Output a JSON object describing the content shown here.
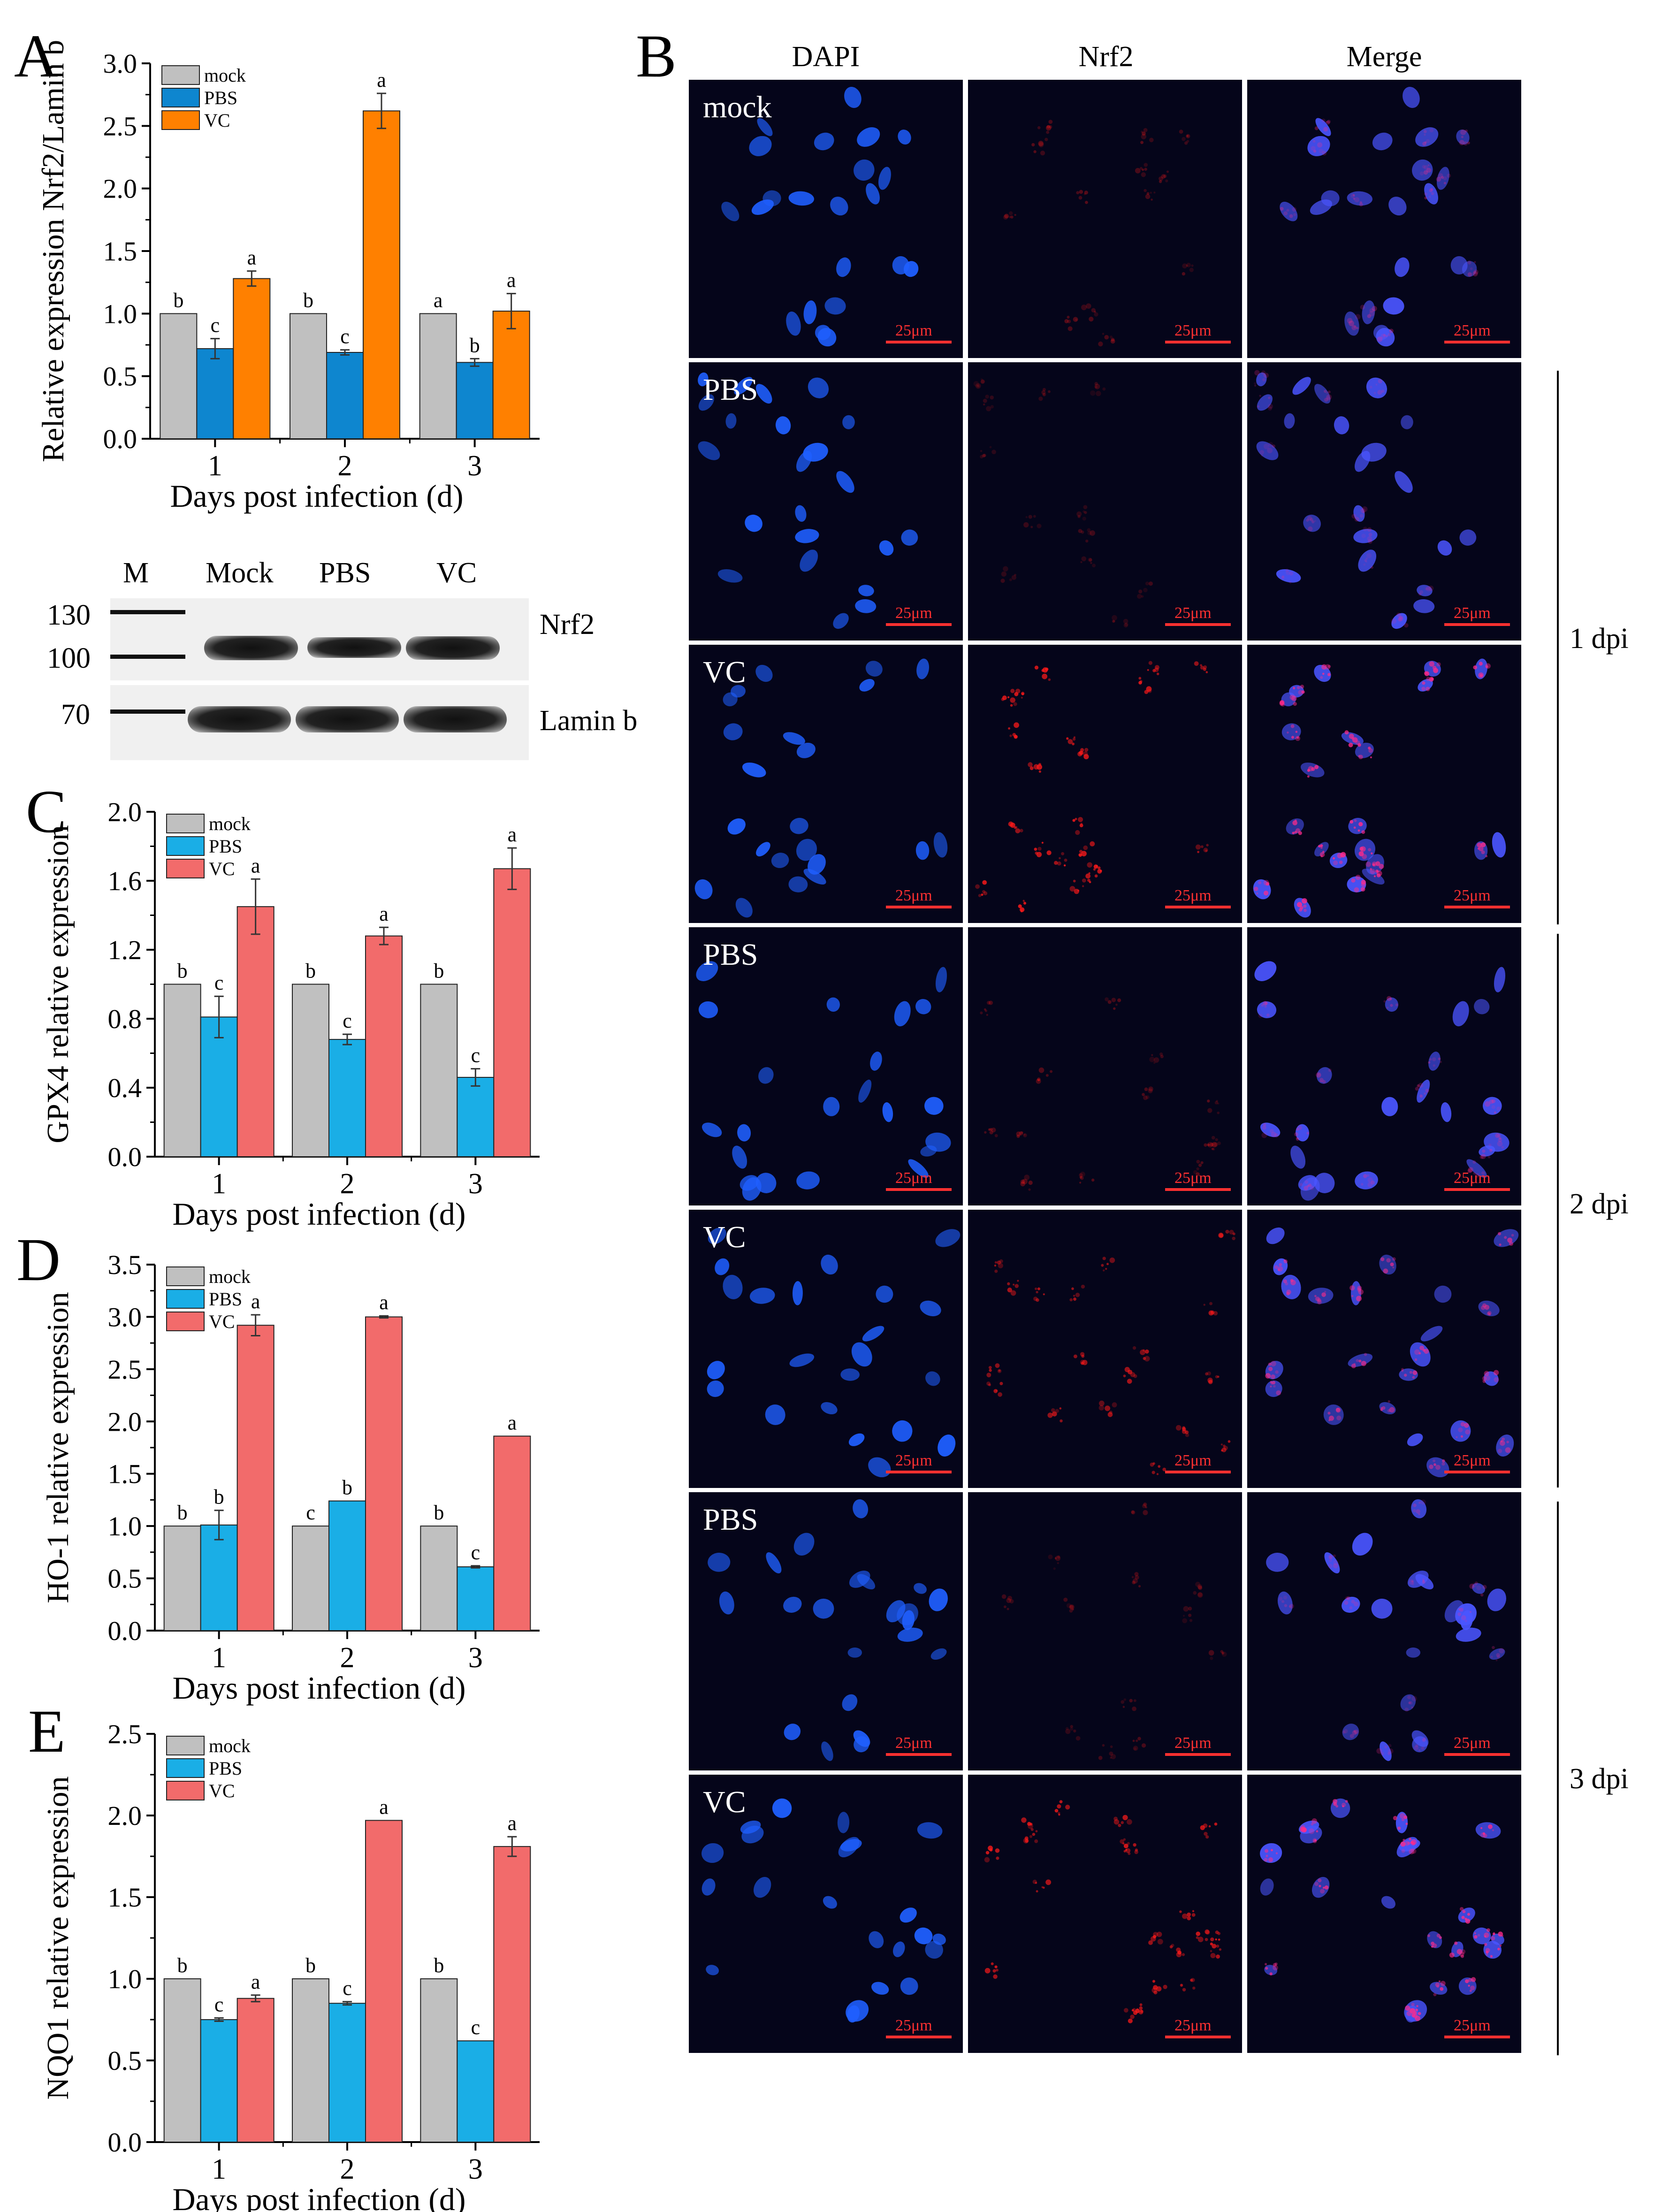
{
  "panels": {
    "A": "A",
    "B": "B",
    "C": "C",
    "D": "D",
    "E": "E"
  },
  "chart_data": [
    {
      "id": "chart-A",
      "type": "bar",
      "ylabel": "Relative expression Nrf2/Lamin b",
      "xlabel": "Days post infection (d)",
      "categories": [
        "1",
        "2",
        "3"
      ],
      "ylim": [
        0,
        3.0
      ],
      "yticks": [
        "0.0",
        "0.5",
        "1.0",
        "1.5",
        "2.0",
        "2.5",
        "3.0"
      ],
      "series": [
        {
          "name": "mock",
          "color": "#c0c0c0",
          "values": [
            1.0,
            1.0,
            1.0
          ],
          "errors": [
            0,
            0,
            0
          ],
          "letters": [
            "b",
            "b",
            "a"
          ]
        },
        {
          "name": "PBS",
          "color": "#0e86cf",
          "values": [
            0.72,
            0.69,
            0.61
          ],
          "errors": [
            0.08,
            0.02,
            0.03
          ],
          "letters": [
            "c",
            "c",
            "b"
          ]
        },
        {
          "name": "VC",
          "color": "#ff8000",
          "values": [
            1.28,
            2.62,
            1.02
          ],
          "errors": [
            0.06,
            0.14,
            0.14
          ],
          "letters": [
            "a",
            "a",
            "a"
          ]
        }
      ],
      "legend": "top-left",
      "grid": false
    },
    {
      "id": "chart-C",
      "type": "bar",
      "ylabel": "GPX4 relative expression",
      "xlabel": "Days post infection (d)",
      "categories": [
        "1",
        "2",
        "3"
      ],
      "ylim": [
        0,
        2.0
      ],
      "yticks": [
        "0.0",
        "0.4",
        "0.8",
        "1.2",
        "1.6",
        "2.0"
      ],
      "series": [
        {
          "name": "mock",
          "color": "#c0c0c0",
          "values": [
            1.0,
            1.0,
            1.0
          ],
          "errors": [
            0,
            0,
            0
          ],
          "letters": [
            "b",
            "b",
            "b"
          ]
        },
        {
          "name": "PBS",
          "color": "#1aaee6",
          "values": [
            0.81,
            0.68,
            0.46
          ],
          "errors": [
            0.12,
            0.03,
            0.05
          ],
          "letters": [
            "c",
            "c",
            "c"
          ]
        },
        {
          "name": "VC",
          "color": "#f26b6b",
          "values": [
            1.45,
            1.28,
            1.67
          ],
          "errors": [
            0.16,
            0.05,
            0.12
          ],
          "letters": [
            "a",
            "a",
            "a"
          ]
        }
      ],
      "legend": "top-left",
      "grid": false
    },
    {
      "id": "chart-D",
      "type": "bar",
      "ylabel": "HO-1 relative  expression",
      "xlabel": "Days post infection (d)",
      "categories": [
        "1",
        "2",
        "3"
      ],
      "ylim": [
        0,
        3.5
      ],
      "yticks": [
        "0.0",
        "0.5",
        "1.0",
        "1.5",
        "2.0",
        "2.5",
        "3.0",
        "3.5"
      ],
      "series": [
        {
          "name": "mock",
          "color": "#c0c0c0",
          "values": [
            1.0,
            1.0,
            1.0
          ],
          "errors": [
            0,
            0,
            0
          ],
          "letters": [
            "b",
            "c",
            "b"
          ]
        },
        {
          "name": "PBS",
          "color": "#1aaee6",
          "values": [
            1.01,
            1.24,
            0.61
          ],
          "errors": [
            0.14,
            0,
            0.01
          ],
          "letters": [
            "b",
            "b",
            "c"
          ]
        },
        {
          "name": "VC",
          "color": "#f26b6b",
          "values": [
            2.92,
            3.0,
            1.86
          ],
          "errors": [
            0.1,
            0.01,
            0
          ],
          "letters": [
            "a",
            "a",
            "a"
          ]
        }
      ],
      "legend": "top-left",
      "grid": false
    },
    {
      "id": "chart-E",
      "type": "bar",
      "ylabel": "NQO1 relative expression",
      "xlabel": "Days post infection (d)",
      "categories": [
        "1",
        "2",
        "3"
      ],
      "ylim": [
        0,
        2.5
      ],
      "yticks": [
        "0.0",
        "0.5",
        "1.0",
        "1.5",
        "2.0",
        "2.5"
      ],
      "series": [
        {
          "name": "mock",
          "color": "#c0c0c0",
          "values": [
            1.0,
            1.0,
            1.0
          ],
          "errors": [
            0,
            0,
            0
          ],
          "letters": [
            "b",
            "b",
            "b"
          ]
        },
        {
          "name": "PBS",
          "color": "#1aaee6",
          "values": [
            0.75,
            0.85,
            0.62
          ],
          "errors": [
            0.01,
            0.01,
            0
          ],
          "letters": [
            "c",
            "c",
            "c"
          ]
        },
        {
          "name": "VC",
          "color": "#f26b6b",
          "values": [
            0.88,
            1.97,
            1.81
          ],
          "errors": [
            0.02,
            0,
            0.06
          ],
          "letters": [
            "a",
            "a",
            "a"
          ]
        }
      ],
      "legend": "top-left",
      "grid": false
    }
  ],
  "western_blot": {
    "lanes": [
      "M",
      "Mock",
      "PBS",
      "VC"
    ],
    "markers": [
      "130",
      "100",
      "70"
    ],
    "targets": [
      "Nrf2",
      "Lamin b"
    ]
  },
  "microscopy": {
    "columns": [
      "DAPI",
      "Nrf2",
      "Merge"
    ],
    "rows": [
      "mock",
      "PBS",
      "VC",
      "PBS",
      "VC",
      "PBS",
      "VC"
    ],
    "scale_bar": "25μm",
    "groups": [
      "1 dpi",
      "2 dpi",
      "3 dpi"
    ]
  }
}
